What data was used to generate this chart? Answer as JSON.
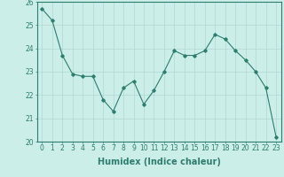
{
  "x": [
    0,
    1,
    2,
    3,
    4,
    5,
    6,
    7,
    8,
    9,
    10,
    11,
    12,
    13,
    14,
    15,
    16,
    17,
    18,
    19,
    20,
    21,
    22,
    23
  ],
  "y": [
    25.7,
    25.2,
    23.7,
    22.9,
    22.8,
    22.8,
    21.8,
    21.3,
    22.3,
    22.6,
    21.6,
    22.2,
    23.0,
    23.9,
    23.7,
    23.7,
    23.9,
    24.6,
    24.4,
    23.9,
    23.5,
    23.0,
    22.3,
    20.2
  ],
  "line_color": "#2e7d6e",
  "marker": "D",
  "marker_size": 1.8,
  "line_width": 0.8,
  "background_color": "#cceee8",
  "grid_color": "#aed8d2",
  "xlabel": "Humidex (Indice chaleur)",
  "xlabel_fontsize": 7,
  "xlabel_bold": true,
  "ylim": [
    20,
    26
  ],
  "xlim": [
    -0.5,
    23.5
  ],
  "yticks": [
    20,
    21,
    22,
    23,
    24,
    25,
    26
  ],
  "xticks": [
    0,
    1,
    2,
    3,
    4,
    5,
    6,
    7,
    8,
    9,
    10,
    11,
    12,
    13,
    14,
    15,
    16,
    17,
    18,
    19,
    20,
    21,
    22,
    23
  ],
  "tick_fontsize": 5.5
}
